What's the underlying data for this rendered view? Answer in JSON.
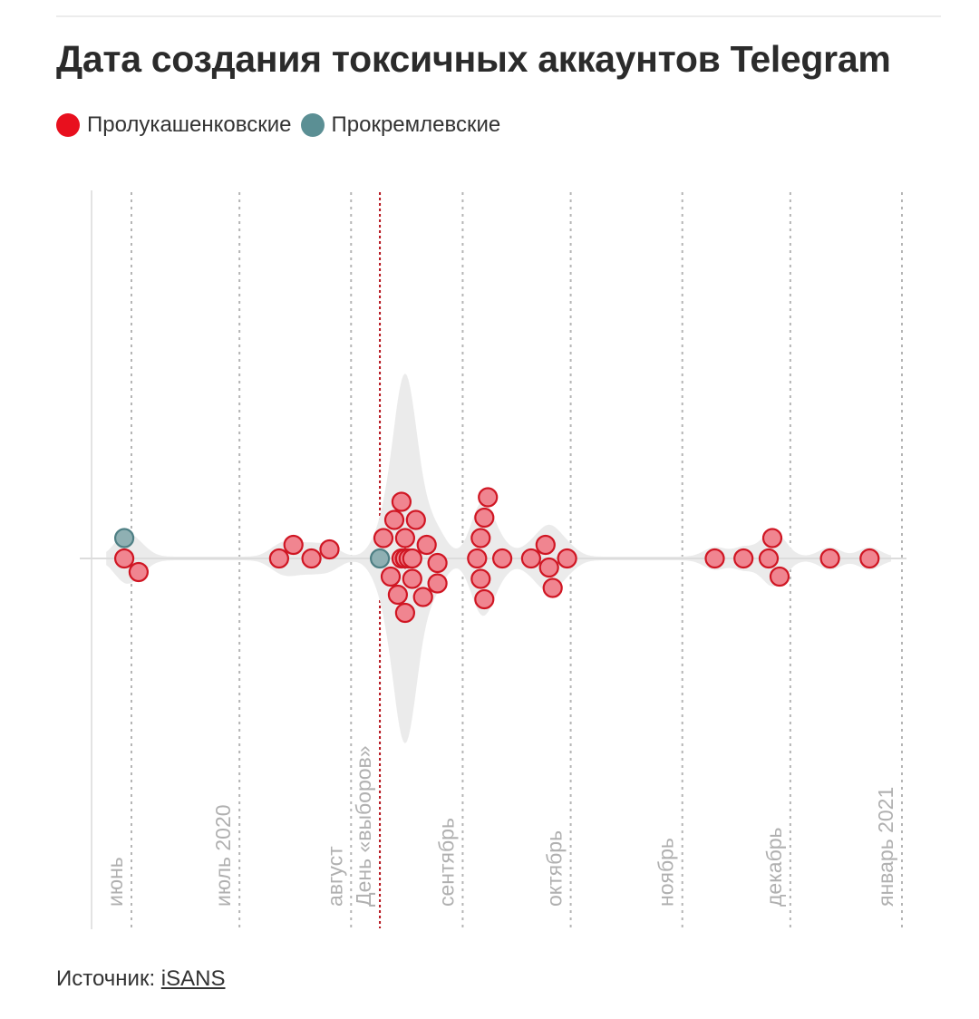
{
  "title": "Дата создания токсичных аккаунтов Telegram",
  "legend": [
    {
      "label": "Пролукашенковские",
      "color": "#e8101e"
    },
    {
      "label": "Прокремлевские",
      "color": "#5b8f94"
    }
  ],
  "source": {
    "label": "Источник:",
    "link_text": "iSANS"
  },
  "colors": {
    "pro_lukashenko_fill": "#f08590",
    "pro_lukashenko_stroke": "#d01623",
    "pro_kremlin_fill": "#8fb0b3",
    "pro_kremlin_stroke": "#4e7f84",
    "violin": "#ebebeb",
    "grid": "#b5b5b5",
    "election_line": "#b5121b",
    "axis_label": "#b0b0b0"
  },
  "chart_data": {
    "type": "scatter",
    "subtype": "beeswarm with density (violin) band",
    "title": "Дата создания токсичных аккаунтов Telegram",
    "xlabel": "",
    "ylabel": "",
    "x_axis": "date",
    "xlim": [
      "2020-05-21",
      "2021-01-01"
    ],
    "grid": "vertical dotted lines at month boundaries",
    "legend_position": "top-left",
    "month_ticks": [
      {
        "label": "июнь",
        "date": "2020-06-01"
      },
      {
        "label": "июль 2020",
        "date": "2020-07-01"
      },
      {
        "label": "август",
        "date": "2020-08-01"
      },
      {
        "label": "сентябрь",
        "date": "2020-09-01"
      },
      {
        "label": "октябрь",
        "date": "2020-10-01"
      },
      {
        "label": "ноябрь",
        "date": "2020-11-01"
      },
      {
        "label": "декабрь",
        "date": "2020-12-01"
      },
      {
        "label": "январь 2021",
        "date": "2021-01-01"
      }
    ],
    "annotations": [
      {
        "label": "День «выборов»",
        "date": "2020-08-09"
      }
    ],
    "series": [
      {
        "name": "Пролукашенковские",
        "color": "#e8101e",
        "dates": [
          "2020-05-30",
          "2020-06-03",
          "2020-07-12",
          "2020-07-16",
          "2020-07-21",
          "2020-07-26",
          "2020-08-10",
          "2020-08-12",
          "2020-08-13",
          "2020-08-14",
          "2020-08-15",
          "2020-08-15",
          "2020-08-16",
          "2020-08-16",
          "2020-08-16",
          "2020-08-16",
          "2020-08-16",
          "2020-08-16",
          "2020-08-16",
          "2020-08-16",
          "2020-08-16",
          "2020-08-16",
          "2020-08-16",
          "2020-08-16",
          "2020-08-17",
          "2020-08-18",
          "2020-08-18",
          "2020-08-19",
          "2020-08-21",
          "2020-08-22",
          "2020-08-25",
          "2020-08-25",
          "2020-09-05",
          "2020-09-06",
          "2020-09-06",
          "2020-09-07",
          "2020-09-07",
          "2020-09-08",
          "2020-09-12",
          "2020-09-20",
          "2020-09-24",
          "2020-09-25",
          "2020-09-26",
          "2020-09-30",
          "2020-11-10",
          "2020-11-18",
          "2020-11-25",
          "2020-11-26",
          "2020-11-28",
          "2020-12-12",
          "2020-12-23"
        ]
      },
      {
        "name": "Прокремлевские",
        "color": "#5b8f94",
        "dates": [
          "2020-05-30",
          "2020-08-09"
        ]
      }
    ]
  }
}
